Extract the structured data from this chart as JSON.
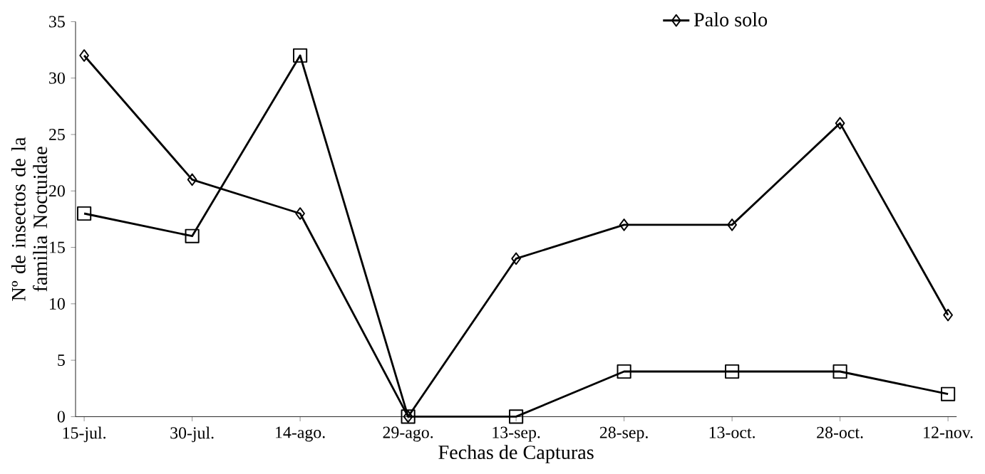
{
  "chart_data": {
    "type": "line",
    "xlabel": "Fechas de Capturas",
    "ylabel": "Nº de insectos de la familia Noctuidae",
    "categories": [
      "15-jul.",
      "30-jul.",
      "14-ago.",
      "29-ago.",
      "13-sep.",
      "28-sep.",
      "13-oct.",
      "28-oct.",
      "12-nov."
    ],
    "series": [
      {
        "name": "Palo solo",
        "color": "#000000",
        "marker": "diamond",
        "values": [
          32,
          21,
          18,
          0,
          14,
          17,
          17,
          26,
          9
        ]
      },
      {
        "color": "#000000",
        "marker": "square",
        "values": [
          18,
          16,
          32,
          0,
          0,
          4,
          4,
          4,
          2
        ]
      }
    ],
    "ylim": [
      0,
      35
    ],
    "yticks": [
      0,
      5,
      10,
      15,
      20,
      25,
      30,
      35
    ],
    "legend": "top right",
    "grid": false
  }
}
